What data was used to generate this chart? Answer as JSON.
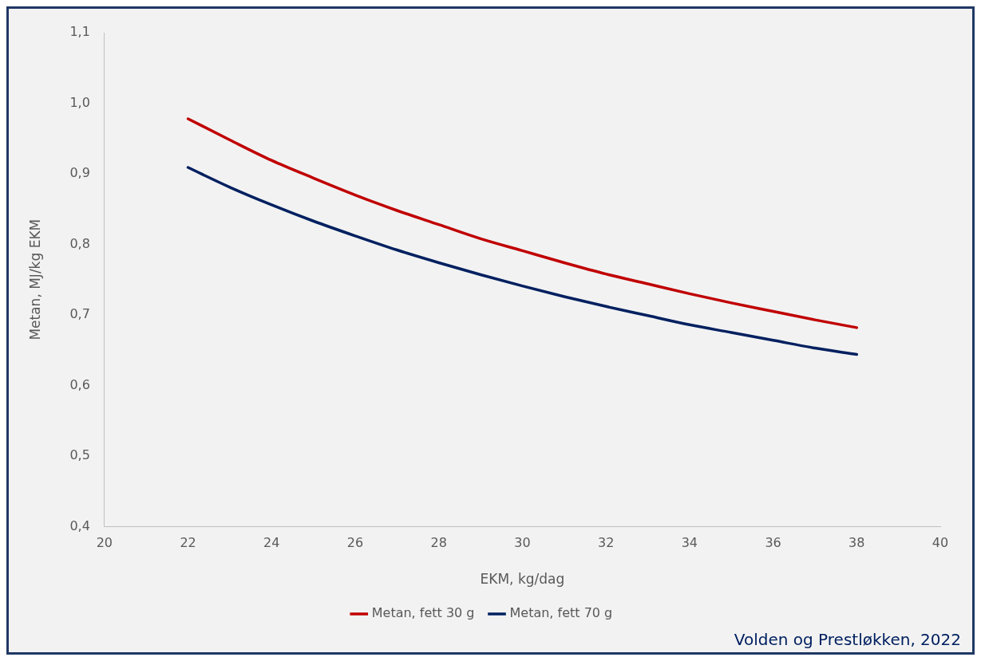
{
  "chart_data": {
    "type": "line",
    "xlabel": "EKM, kg/dag",
    "ylabel": "Metan, MJ/kg EKM",
    "x": [
      22,
      23,
      24,
      25,
      26,
      27,
      28,
      29,
      30,
      31,
      32,
      33,
      34,
      35,
      36,
      37,
      38
    ],
    "series": [
      {
        "name": "Metan, fett 30 g",
        "color": "#c00000",
        "values": [
          0.978,
          0.948,
          0.919,
          0.894,
          0.87,
          0.848,
          0.828,
          0.808,
          0.791,
          0.774,
          0.758,
          0.744,
          0.73,
          0.717,
          0.705,
          0.693,
          0.682
        ]
      },
      {
        "name": "Metan, fett 70 g",
        "color": "#002060",
        "values": [
          0.909,
          0.881,
          0.856,
          0.833,
          0.812,
          0.792,
          0.774,
          0.757,
          0.741,
          0.726,
          0.712,
          0.699,
          0.686,
          0.675,
          0.664,
          0.653,
          0.644
        ]
      }
    ],
    "xlim": [
      20,
      40
    ],
    "xticks": [
      20,
      22,
      24,
      26,
      28,
      30,
      32,
      34,
      36,
      38,
      40
    ],
    "ylim": [
      0.4,
      1.1
    ],
    "yticks": [
      {
        "value": 0.4,
        "label": "0,4"
      },
      {
        "value": 0.5,
        "label": "0,5"
      },
      {
        "value": 0.6,
        "label": "0,6"
      },
      {
        "value": 0.7,
        "label": "0,7"
      },
      {
        "value": 0.8,
        "label": "0,8"
      },
      {
        "value": 0.9,
        "label": "0,9"
      },
      {
        "value": 1.0,
        "label": "1,0"
      },
      {
        "value": 1.1,
        "label": "1,1"
      }
    ],
    "grid": false,
    "legend": "bottom",
    "marker": "none",
    "line_style": "solid",
    "annotations": [
      "Volden og Prestløkken, 2022"
    ]
  }
}
